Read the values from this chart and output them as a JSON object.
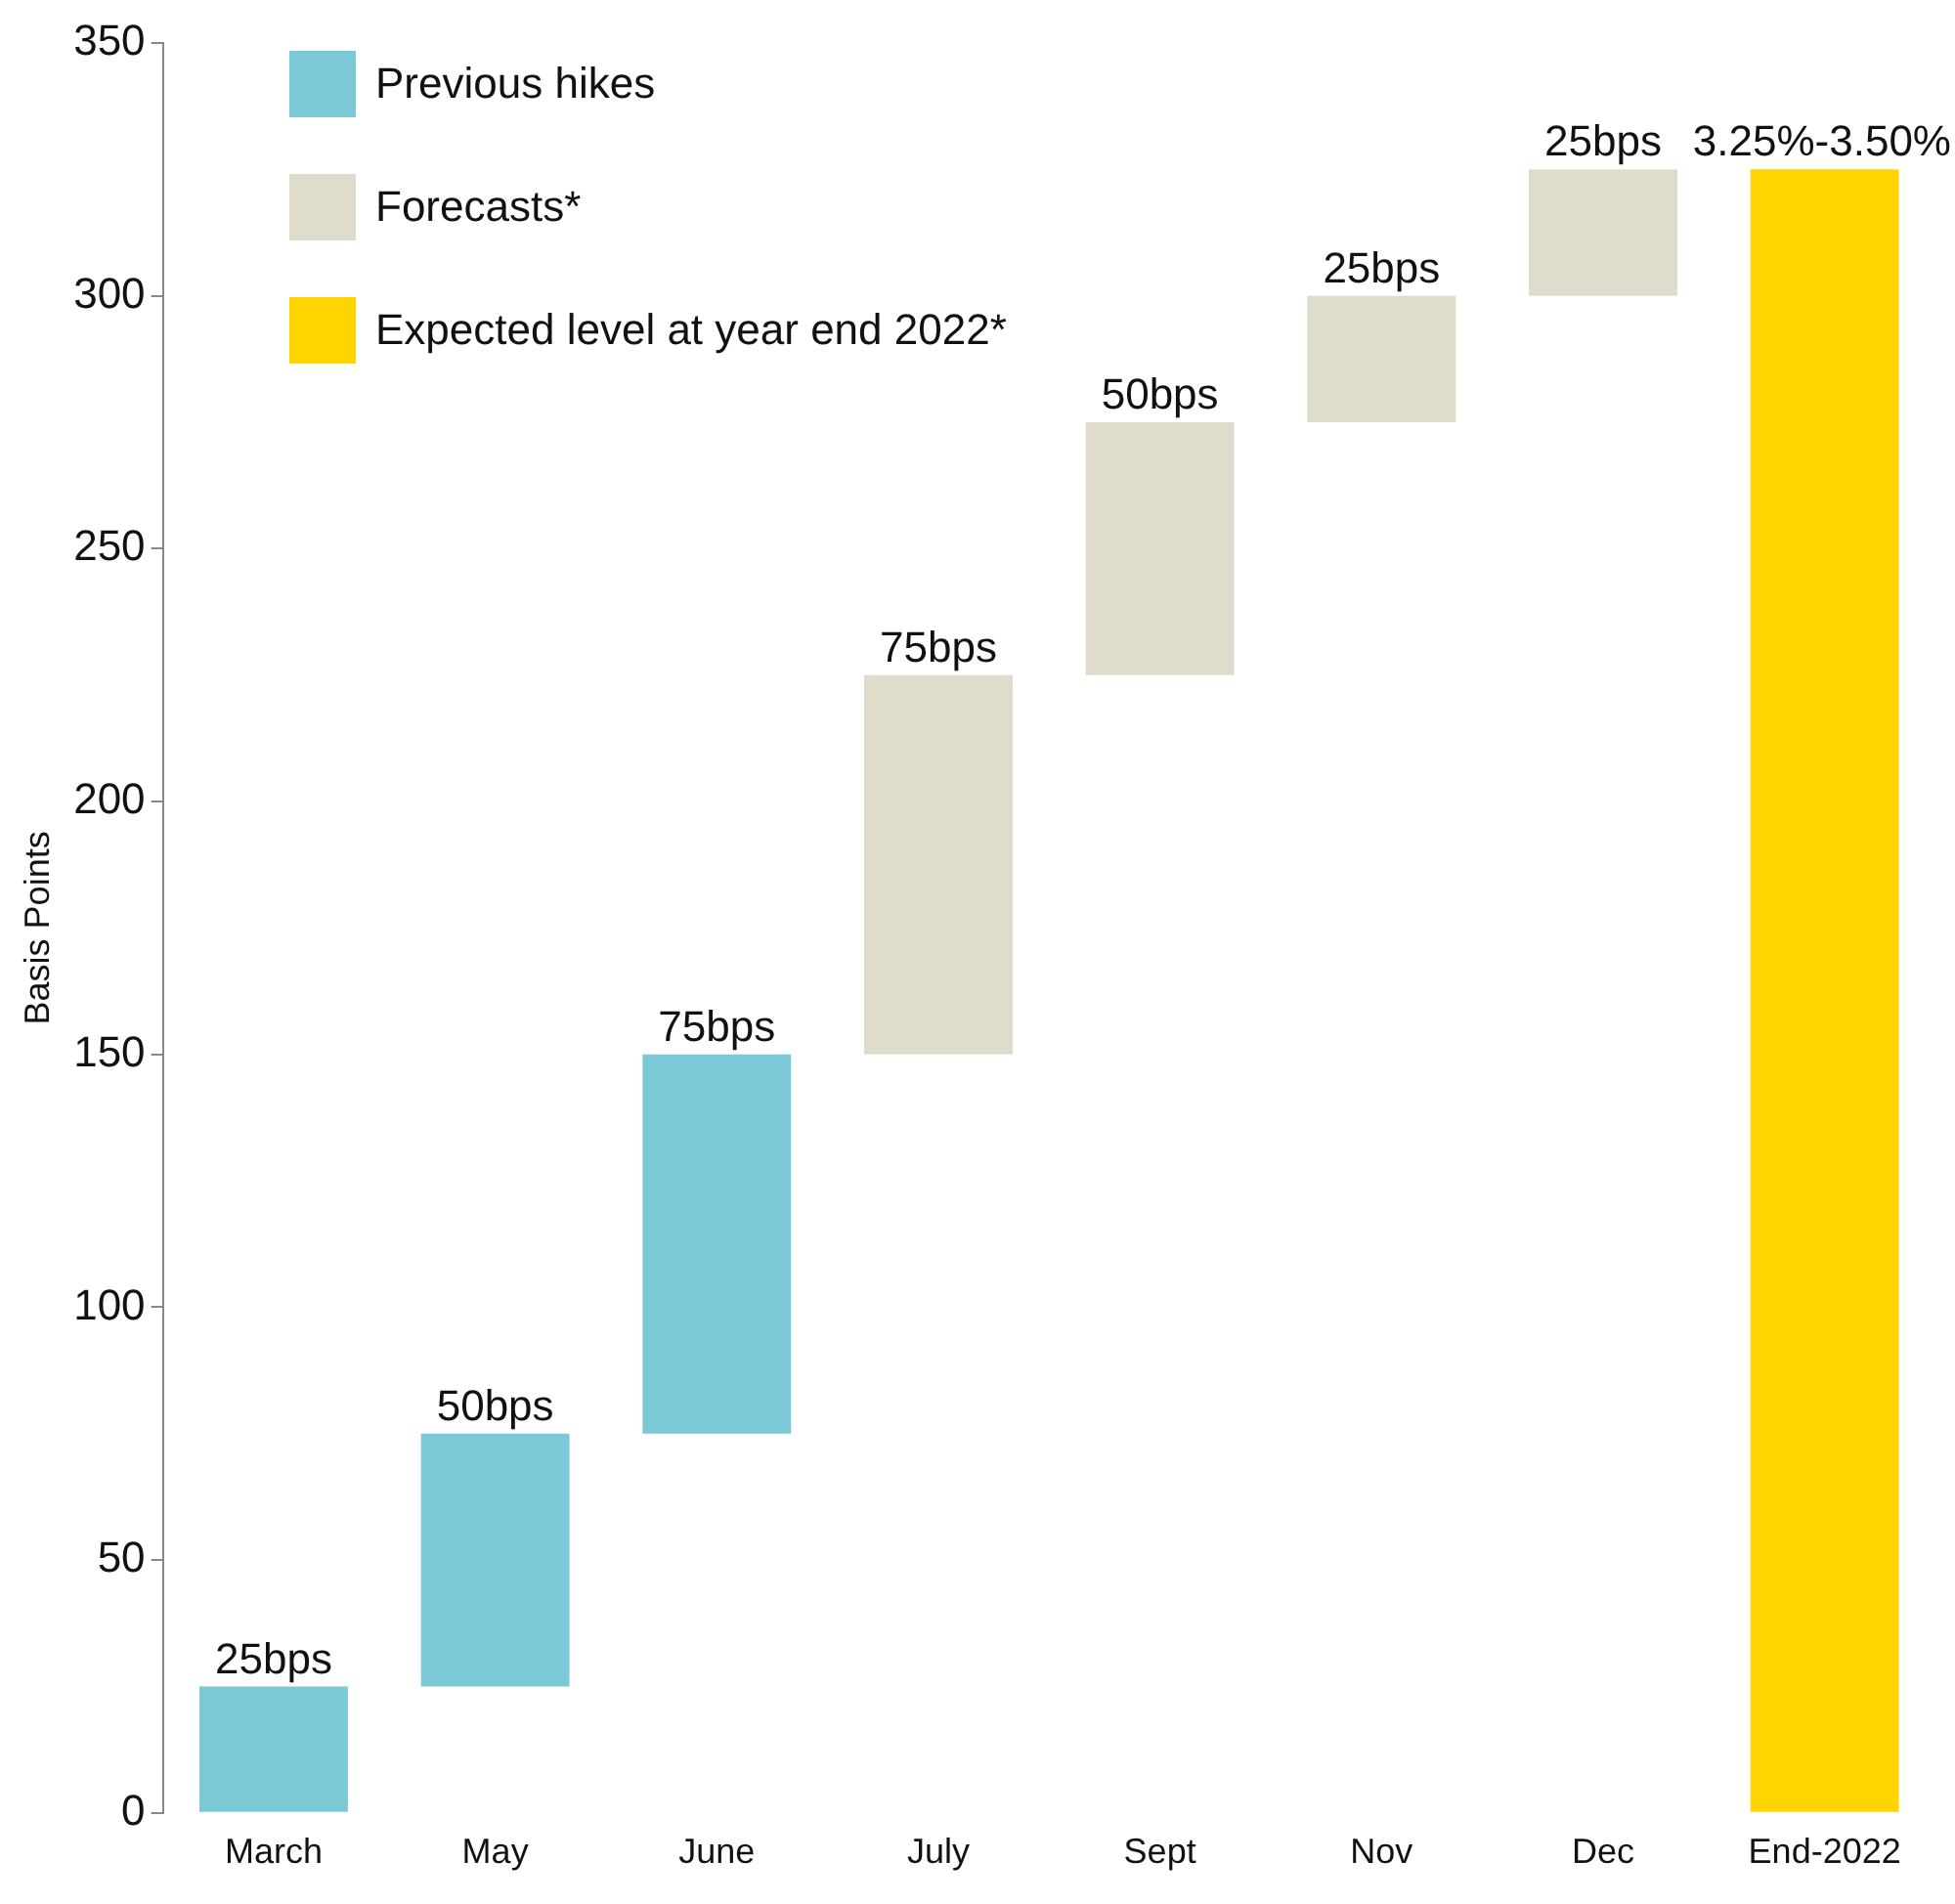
{
  "chart_data": {
    "type": "bar",
    "ylabel": "Basis Points",
    "categories": [
      "March",
      "May",
      "June",
      "July",
      "Sept",
      "Nov",
      "Dec",
      "End-2022"
    ],
    "series": [
      {
        "name": "Previous hikes",
        "color": "#7bc8d6",
        "values": [
          25,
          50,
          75,
          null,
          null,
          null,
          null,
          null
        ],
        "base": [
          0,
          25,
          75,
          null,
          null,
          null,
          null,
          null
        ],
        "value_labels": [
          "25bps",
          "50bps",
          "75bps",
          null,
          null,
          null,
          null,
          null
        ]
      },
      {
        "name": "Forecasts*",
        "color": "#e0dccb",
        "values": [
          null,
          null,
          null,
          75,
          50,
          25,
          25,
          null
        ],
        "base": [
          null,
          null,
          null,
          150,
          225,
          275,
          300,
          null
        ],
        "value_labels": [
          null,
          null,
          null,
          "75bps",
          "50bps",
          "25bps",
          "25bps",
          null
        ]
      },
      {
        "name": "Expected level at year end 2022*",
        "color": "#ffd500",
        "values": [
          null,
          null,
          null,
          null,
          null,
          null,
          null,
          325
        ],
        "base": [
          null,
          null,
          null,
          null,
          null,
          null,
          null,
          0
        ]
      }
    ],
    "annotations": [
      {
        "text": "3.25%-3.50%",
        "x": "End-2022",
        "y": 325
      }
    ],
    "ylim": [
      0,
      350
    ],
    "yticks": [
      0,
      50,
      100,
      150,
      200,
      250,
      300,
      350
    ],
    "legend": "top left",
    "grid": false
  }
}
